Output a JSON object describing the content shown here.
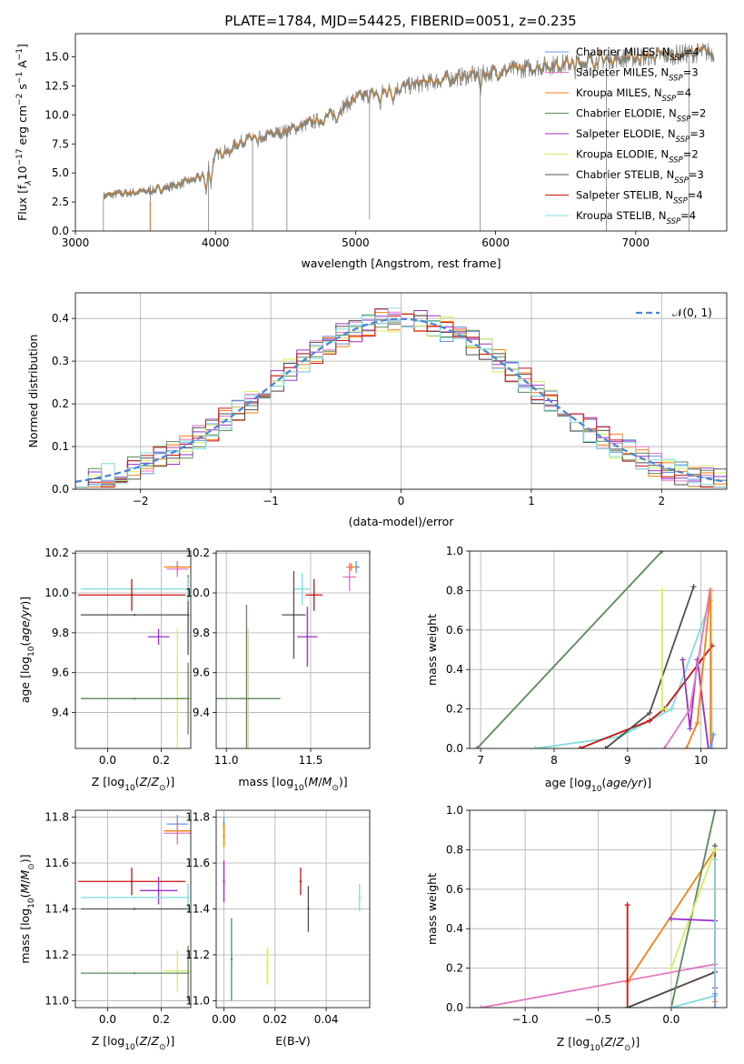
{
  "figure": {
    "title": "PLATE=1784, MJD=54425, FIBERID=0051, z=0.235"
  },
  "colors": {
    "Chabrier MILES": "#6495ed",
    "Salpeter MILES": "#e377c2",
    "Kroupa MILES": "#ff7f0e",
    "Chabrier ELODIE": "#5a8a5a",
    "Salpeter ELODIE": "#9932cc",
    "Kroupa ELODIE": "#d4ee5e",
    "Chabrier STELIB": "#505050",
    "Salpeter STELIB": "#cc1111",
    "Kroupa STELIB": "#7fdde0"
  },
  "chart_data": [
    {
      "id": "spectrum",
      "type": "line",
      "title": "PLATE=1784, MJD=54425, FIBERID=0051, z=0.235",
      "xlabel": "wavelength [Angstrom, rest frame]",
      "ylabel_text": "Flux [f",
      "xlim": [
        3000,
        7650
      ],
      "ylim": [
        0,
        17
      ],
      "xticks": [
        3000,
        4000,
        5000,
        6000,
        7000
      ],
      "yticks": [
        0.0,
        2.5,
        5.0,
        7.5,
        10.0,
        12.5,
        15.0
      ],
      "ytick_labels": [
        "0.0",
        "2.5",
        "5.0",
        "7.5",
        "10.0",
        "12.5",
        "15.0"
      ],
      "legend_placement": "upper right",
      "legend": [
        {
          "label": "Chabrier MILES, N",
          "nssp": "=4"
        },
        {
          "label": "Salpeter MILES, N",
          "nssp": "=3"
        },
        {
          "label": "Kroupa MILES, N",
          "nssp": "=4"
        },
        {
          "label": "Chabrier ELODIE, N",
          "nssp": "=2"
        },
        {
          "label": "Salpeter ELODIE, N",
          "nssp": "=3"
        },
        {
          "label": "Kroupa ELODIE, N",
          "nssp": "=2"
        },
        {
          "label": "Chabrier STELIB, N",
          "nssp": "=3"
        },
        {
          "label": "Salpeter STELIB, N",
          "nssp": "=4"
        },
        {
          "label": "Kroupa STELIB, N",
          "nssp": "=4"
        }
      ],
      "continuum": {
        "x": [
          3200,
          3300,
          3500,
          3600,
          3700,
          3900,
          4000,
          4200,
          4500,
          4800,
          5000,
          5300,
          5600,
          6000,
          6400,
          6800,
          7200,
          7500
        ],
        "y": [
          3.0,
          3.2,
          3.4,
          3.6,
          3.9,
          4.6,
          6.5,
          7.8,
          8.6,
          9.8,
          11.4,
          12.3,
          13.0,
          13.7,
          14.3,
          14.8,
          15.1,
          15.4
        ]
      },
      "spikes": [
        {
          "x": 3535,
          "y": 0.0
        },
        {
          "x": 3950,
          "y": 0.0
        },
        {
          "x": 4265,
          "y": 0.0
        },
        {
          "x": 4510,
          "y": 0.0
        },
        {
          "x": 5100,
          "y": 1.0
        },
        {
          "x": 5890,
          "y": 0.0
        },
        {
          "x": 6790,
          "y": 0.0
        },
        {
          "x": 7380,
          "y": 0.0
        }
      ]
    },
    {
      "id": "residuals",
      "type": "line",
      "xlabel": "(data-model)/error",
      "ylabel": "Normed distribution",
      "xlim": [
        -2.5,
        2.5
      ],
      "ylim": [
        0,
        0.46
      ],
      "xticks": [
        -2,
        -1,
        0,
        1,
        2
      ],
      "xtick_labels": [
        "−2",
        "−1",
        "0",
        "1",
        "2"
      ],
      "yticks": [
        0.0,
        0.1,
        0.2,
        0.3,
        0.4
      ],
      "ytick_labels": [
        "0.0",
        "0.1",
        "0.2",
        "0.3",
        "0.4"
      ],
      "grid": true,
      "legend_placement": "upper right",
      "legend_label": "𝒩(0, 1)",
      "bin_width": 0.1,
      "bin_start": -2.5
    },
    {
      "id": "age_vs_Z",
      "type": "scatter",
      "xlabel": "Z [log",
      "ylabel": "age  [log",
      "xlim": [
        -0.12,
        0.31
      ],
      "ylim": [
        9.22,
        10.21
      ],
      "xticks": [
        0.0,
        0.2
      ],
      "xtick_labels": [
        "0.0",
        "0.2"
      ],
      "yticks": [
        9.4,
        9.6,
        9.8,
        10.0,
        10.2
      ],
      "ytick_labels": [
        "9.4",
        "9.6",
        "9.8",
        "10.0",
        "10.2"
      ],
      "grid": true,
      "points": [
        {
          "model": "Chabrier MILES",
          "x": 0.26,
          "y": 10.13,
          "xerr": 0.03,
          "yerr": 0.02
        },
        {
          "model": "Kroupa MILES",
          "x": 0.26,
          "y": 10.13,
          "xerr": 0.05,
          "yerr": 0.03
        },
        {
          "model": "Salpeter MILES",
          "x": 0.26,
          "y": 10.12,
          "xerr": 0.04,
          "yerr": 0.04
        },
        {
          "model": "Kroupa STELIB",
          "x": 0.1,
          "y": 10.02,
          "xerr": 0.2,
          "yerr": 0.0
        },
        {
          "model": "Salpeter STELIB",
          "x": 0.09,
          "y": 9.99,
          "xerr": 0.2,
          "yerr": 0.08
        },
        {
          "model": "Chabrier STELIB",
          "x": 0.1,
          "y": 9.89,
          "xerr": 0.2,
          "yerr": 0.0
        },
        {
          "model": "Salpeter ELODIE",
          "x": 0.19,
          "y": 9.78,
          "xerr": 0.04,
          "yerr": 0.04
        },
        {
          "model": "Kroupa ELODIE",
          "x": 0.26,
          "y": 9.47,
          "xerr": 0.05,
          "yerr": 0.35
        },
        {
          "model": "Chabrier ELODIE",
          "x": 0.1,
          "y": 9.47,
          "xerr": 0.2,
          "yerr": 0.0
        },
        {
          "model": "Chabrier STELIB",
          "x": 0.3,
          "y": 9.89,
          "xerr": 0.0,
          "yerr": 0.2
        },
        {
          "model": "Kroupa STELIB",
          "x": 0.3,
          "y": 10.02,
          "xerr": 0.0,
          "yerr": 0.06
        },
        {
          "model": "Chabrier ELODIE",
          "x": 0.3,
          "y": 9.47,
          "xerr": 0.0,
          "yerr": 0.18
        }
      ]
    },
    {
      "id": "age_vs_mass",
      "type": "scatter",
      "xlabel": "mass [log",
      "xlim": [
        10.94,
        11.85
      ],
      "ylim": [
        9.22,
        10.21
      ],
      "xticks": [
        11.0,
        11.5
      ],
      "xtick_labels": [
        "11.0",
        "11.5"
      ],
      "yticks": [
        9.4,
        9.6,
        9.8,
        10.0,
        10.2
      ],
      "ytick_labels": [
        "9.4",
        "9.6",
        "9.8",
        "10.0",
        "10.2"
      ],
      "grid": true,
      "points": [
        {
          "model": "Chabrier MILES",
          "x": 11.77,
          "y": 10.13,
          "xerr": 0.02,
          "yerr": 0.03
        },
        {
          "model": "Kroupa MILES",
          "x": 11.74,
          "y": 10.13,
          "xerr": 0.03,
          "yerr": 0.02
        },
        {
          "model": "Salpeter MILES",
          "x": 11.73,
          "y": 10.08,
          "xerr": 0.04,
          "yerr": 0.07
        },
        {
          "model": "Kroupa STELIB",
          "x": 11.45,
          "y": 10.02,
          "xerr": 0.05,
          "yerr": 0.08
        },
        {
          "model": "Salpeter STELIB",
          "x": 11.52,
          "y": 9.99,
          "xerr": 0.05,
          "yerr": 0.08
        },
        {
          "model": "Chabrier STELIB",
          "x": 11.4,
          "y": 9.89,
          "xerr": 0.07,
          "yerr": 0.22
        },
        {
          "model": "Salpeter ELODIE",
          "x": 11.48,
          "y": 9.78,
          "xerr": 0.06,
          "yerr": 0.15
        },
        {
          "model": "Kroupa ELODIE",
          "x": 11.13,
          "y": 9.47,
          "xerr": 0.07,
          "yerr": 0.35
        },
        {
          "model": "Chabrier ELODIE",
          "x": 11.12,
          "y": 9.47,
          "xerr": 0.2,
          "yerr": 0.47
        }
      ]
    },
    {
      "id": "massweight_vs_age",
      "type": "line",
      "xlabel": "age  [log",
      "ylabel": "mass weight",
      "xlim": [
        6.85,
        10.35
      ],
      "ylim": [
        0,
        1
      ],
      "xticks": [
        7,
        8,
        9,
        10
      ],
      "xtick_labels": [
        "7",
        "8",
        "9",
        "10"
      ],
      "yticks": [
        0.0,
        0.2,
        0.4,
        0.6,
        0.8,
        1.0
      ],
      "ytick_labels": [
        "0.0",
        "0.2",
        "0.4",
        "0.6",
        "0.8",
        "1.0"
      ],
      "grid": true,
      "series": [
        {
          "model": "Chabrier ELODIE",
          "x": [
            6.95,
            9.47
          ],
          "y": [
            0.0,
            1.0
          ]
        },
        {
          "model": "Kroupa STELIB",
          "x": [
            7.75,
            8.9,
            9.6,
            10.13,
            10.15
          ],
          "y": [
            0.0,
            0.06,
            0.2,
            0.75,
            0.0
          ]
        },
        {
          "model": "Salpeter STELIB",
          "x": [
            8.35,
            9.3,
            9.5,
            10.15
          ],
          "y": [
            0.0,
            0.14,
            0.2,
            0.52
          ]
        },
        {
          "model": "Chabrier STELIB",
          "x": [
            8.7,
            9.3,
            9.9
          ],
          "y": [
            0.0,
            0.18,
            0.82
          ]
        },
        {
          "model": "Kroupa ELODIE",
          "x": [
            9.47,
            9.47,
            9.52
          ],
          "y": [
            0.8,
            0.2,
            0.2
          ]
        },
        {
          "model": "Salpeter ELODIE",
          "x": [
            9.75,
            9.85,
            9.95,
            10.1
          ],
          "y": [
            0.45,
            0.1,
            0.45,
            0.0
          ]
        },
        {
          "model": "Kroupa MILES",
          "x": [
            9.8,
            9.95,
            10.13,
            10.13
          ],
          "y": [
            0.0,
            0.13,
            0.8,
            0.0
          ]
        },
        {
          "model": "Salpeter MILES",
          "x": [
            9.5,
            9.85,
            10.12
          ],
          "y": [
            0.0,
            0.2,
            0.8
          ]
        },
        {
          "model": "Chabrier MILES",
          "x": [
            10.13,
            10.17
          ],
          "y": [
            0.0,
            0.07
          ]
        }
      ]
    },
    {
      "id": "mass_vs_Z",
      "type": "scatter",
      "xlabel": "Z [log",
      "ylabel": "mass [log",
      "xlim": [
        -0.12,
        0.31
      ],
      "ylim": [
        10.97,
        11.83
      ],
      "xticks": [
        0.0,
        0.2
      ],
      "xtick_labels": [
        "0.0",
        "0.2"
      ],
      "yticks": [
        11.0,
        11.2,
        11.4,
        11.6,
        11.8
      ],
      "ytick_labels": [
        "11.0",
        "11.2",
        "11.4",
        "11.6",
        "11.8"
      ],
      "grid": true,
      "points": [
        {
          "model": "Chabrier MILES",
          "x": 0.26,
          "y": 11.77,
          "xerr": 0.04,
          "yerr": 0.04
        },
        {
          "model": "Kroupa MILES",
          "x": 0.26,
          "y": 11.74,
          "xerr": 0.05,
          "yerr": 0.04
        },
        {
          "model": "Salpeter MILES",
          "x": 0.26,
          "y": 11.73,
          "xerr": 0.05,
          "yerr": 0.05
        },
        {
          "model": "Salpeter STELIB",
          "x": 0.09,
          "y": 11.52,
          "xerr": 0.2,
          "yerr": 0.06
        },
        {
          "model": "Salpeter ELODIE",
          "x": 0.19,
          "y": 11.48,
          "xerr": 0.07,
          "yerr": 0.06
        },
        {
          "model": "Kroupa STELIB",
          "x": 0.1,
          "y": 11.45,
          "xerr": 0.2,
          "yerr": 0.0
        },
        {
          "model": "Chabrier STELIB",
          "x": 0.1,
          "y": 11.4,
          "xerr": 0.2,
          "yerr": 0.0
        },
        {
          "model": "Kroupa ELODIE",
          "x": 0.26,
          "y": 11.13,
          "xerr": 0.05,
          "yerr": 0.09
        },
        {
          "model": "Chabrier ELODIE",
          "x": 0.1,
          "y": 11.12,
          "xerr": 0.2,
          "yerr": 0.0
        },
        {
          "model": "Chabrier ELODIE",
          "x": 0.3,
          "y": 11.12,
          "xerr": 0.0,
          "yerr": 0.12
        },
        {
          "model": "Kroupa STELIB",
          "x": 0.3,
          "y": 11.45,
          "xerr": 0.0,
          "yerr": 0.06
        }
      ]
    },
    {
      "id": "mass_vs_ebv",
      "type": "scatter",
      "xlabel": "E(B-V)",
      "xlim": [
        -0.003,
        0.057
      ],
      "ylim": [
        10.97,
        11.83
      ],
      "xticks": [
        0.0,
        0.02,
        0.04
      ],
      "xtick_labels": [
        "0.00",
        "0.02",
        "0.04"
      ],
      "yticks": [
        11.0,
        11.2,
        11.4,
        11.6,
        11.8
      ],
      "ytick_labels": [
        "11.0",
        "11.2",
        "11.4",
        "11.6",
        "11.8"
      ],
      "grid": true,
      "points": [
        {
          "model": "Chabrier MILES",
          "x": 0.0,
          "y": 11.77,
          "xerr": 0.0,
          "yerr": 0.03
        },
        {
          "model": "Kroupa MILES",
          "x": 0.0,
          "y": 11.72,
          "xerr": 0.0,
          "yerr": 0.05
        },
        {
          "model": "Salpeter ELODIE",
          "x": 0.0,
          "y": 11.52,
          "xerr": 0.0,
          "yerr": 0.09
        },
        {
          "model": "Chabrier ELODIE",
          "x": 0.003,
          "y": 11.18,
          "xerr": 0.0,
          "yerr": 0.18
        },
        {
          "model": "Kroupa ELODIE",
          "x": 0.017,
          "y": 11.15,
          "xerr": 0.0,
          "yerr": 0.08
        },
        {
          "model": "Salpeter STELIB",
          "x": 0.03,
          "y": 11.52,
          "xerr": 0.0,
          "yerr": 0.06
        },
        {
          "model": "Chabrier STELIB",
          "x": 0.033,
          "y": 11.4,
          "xerr": 0.0,
          "yerr": 0.1
        },
        {
          "model": "Kroupa STELIB",
          "x": 0.053,
          "y": 11.45,
          "xerr": 0.0,
          "yerr": 0.06
        }
      ]
    },
    {
      "id": "massweight_vs_Z",
      "type": "line",
      "xlabel": "Z [log",
      "ylabel": "mass weight",
      "xlim": [
        -1.38,
        0.38
      ],
      "ylim": [
        0,
        1
      ],
      "xticks": [
        -1.0,
        -0.5,
        0.0
      ],
      "xtick_labels": [
        "−1.0",
        "−0.5",
        "0.0"
      ],
      "yticks": [
        0.0,
        0.2,
        0.4,
        0.6,
        0.8,
        1.0
      ],
      "ytick_labels": [
        "0.0",
        "0.2",
        "0.4",
        "0.6",
        "0.8",
        "1.0"
      ],
      "grid": true,
      "series": [
        {
          "model": "Salpeter MILES",
          "x": [
            -1.3,
            0.3
          ],
          "y": [
            0.0,
            0.22
          ]
        },
        {
          "model": "Kroupa MILES",
          "x": [
            -0.3,
            0.3,
            0.3
          ],
          "y": [
            0.13,
            0.8,
            0.03
          ]
        },
        {
          "model": "Salpeter STELIB",
          "x": [
            -0.3,
            -0.3,
            0.3
          ],
          "y": [
            0.52,
            0.0,
            0.18
          ]
        },
        {
          "model": "Chabrier STELIB",
          "x": [
            -0.3,
            0.3,
            0.3
          ],
          "y": [
            0.0,
            0.18,
            0.82
          ]
        },
        {
          "model": "Chabrier ELODIE",
          "x": [
            0.0,
            0.3
          ],
          "y": [
            0.0,
            1.0
          ]
        },
        {
          "model": "Kroupa ELODIE",
          "x": [
            0.0,
            0.3
          ],
          "y": [
            0.2,
            0.8
          ]
        },
        {
          "model": "Salpeter ELODIE",
          "x": [
            0.0,
            0.3,
            0.3
          ],
          "y": [
            0.45,
            0.44,
            0.1
          ]
        },
        {
          "model": "Kroupa STELIB",
          "x": [
            0.0,
            0.3,
            0.3
          ],
          "y": [
            0.0,
            0.06,
            0.75
          ]
        },
        {
          "model": "Chabrier MILES",
          "x": [
            0.3,
            0.3
          ],
          "y": [
            0.0,
            0.07
          ]
        }
      ]
    }
  ]
}
